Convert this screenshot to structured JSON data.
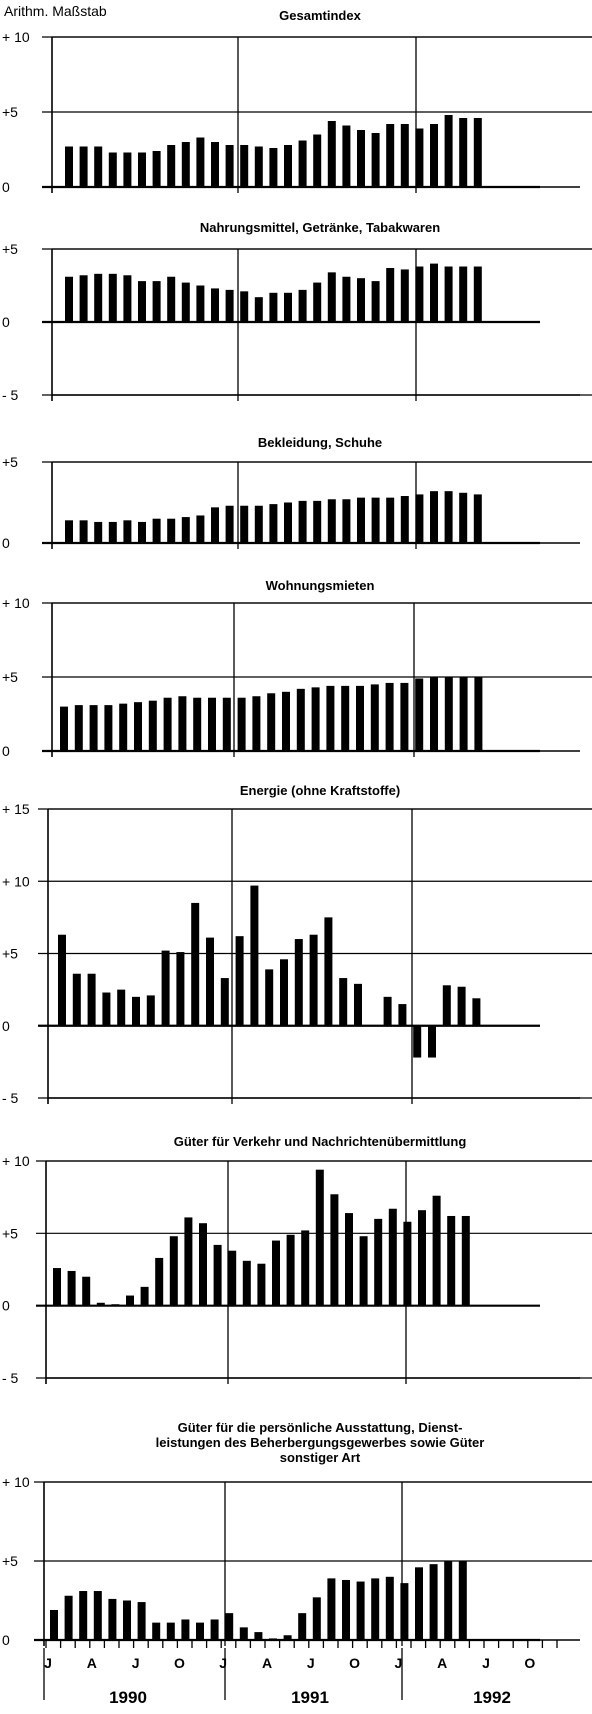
{
  "scale_label": "Arithm. Maßstab",
  "month_labels": [
    "J",
    "A",
    "J",
    "O",
    "J",
    "A",
    "J",
    "O",
    "J",
    "A",
    "J",
    "O"
  ],
  "year_labels": [
    "1990",
    "1991",
    "1992"
  ],
  "chart_data": [
    {
      "type": "bar",
      "title": "Gesamtindex",
      "ylim": [
        0,
        10
      ],
      "yticks": [
        "+ 10",
        "+5",
        "0"
      ],
      "values": [
        2.7,
        2.7,
        2.7,
        2.3,
        2.3,
        2.3,
        2.4,
        2.8,
        3.0,
        3.3,
        3.0,
        2.8,
        2.8,
        2.7,
        2.6,
        2.8,
        3.1,
        3.5,
        4.4,
        4.1,
        3.8,
        3.6,
        4.2,
        4.2,
        3.9,
        4.2,
        4.8,
        4.6,
        4.6
      ],
      "grid": true
    },
    {
      "type": "bar",
      "title": "Nahrungsmittel, Getränke, Tabakwaren",
      "ylim": [
        -5,
        5
      ],
      "yticks": [
        "+5",
        "0",
        "- 5"
      ],
      "values": [
        3.1,
        3.2,
        3.3,
        3.3,
        3.2,
        2.8,
        2.8,
        3.1,
        2.7,
        2.5,
        2.3,
        2.2,
        2.1,
        1.7,
        2.0,
        2.0,
        2.2,
        2.7,
        3.4,
        3.1,
        3.0,
        2.8,
        3.7,
        3.6,
        3.8,
        4.0,
        3.8,
        3.8,
        3.8
      ],
      "grid": true
    },
    {
      "type": "bar",
      "title": "Bekleidung, Schuhe",
      "ylim": [
        0,
        5
      ],
      "yticks": [
        "+5",
        "0"
      ],
      "values": [
        1.4,
        1.4,
        1.3,
        1.3,
        1.4,
        1.3,
        1.5,
        1.5,
        1.6,
        1.7,
        2.2,
        2.3,
        2.3,
        2.3,
        2.4,
        2.5,
        2.6,
        2.6,
        2.7,
        2.7,
        2.8,
        2.8,
        2.8,
        2.9,
        3.0,
        3.2,
        3.2,
        3.1,
        3.0
      ],
      "grid": true
    },
    {
      "type": "bar",
      "title": "Wohnungsmieten",
      "ylim": [
        0,
        10
      ],
      "yticks": [
        "+ 10",
        "+5",
        "0"
      ],
      "values": [
        3.0,
        3.1,
        3.1,
        3.1,
        3.2,
        3.3,
        3.4,
        3.6,
        3.7,
        3.6,
        3.6,
        3.6,
        3.6,
        3.7,
        3.9,
        4.0,
        4.2,
        4.3,
        4.4,
        4.4,
        4.4,
        4.5,
        4.6,
        4.6,
        4.9,
        5.0,
        5.0,
        5.0,
        5.0
      ],
      "grid": true
    },
    {
      "type": "bar",
      "title": "Energie (ohne Kraftstoffe)",
      "ylim": [
        -5,
        15
      ],
      "yticks": [
        "+ 15",
        "+ 10",
        "+5",
        "0",
        "- 5"
      ],
      "values": [
        6.3,
        3.6,
        3.6,
        2.3,
        2.5,
        2.0,
        2.1,
        5.2,
        5.1,
        8.5,
        6.1,
        3.3,
        6.2,
        9.7,
        3.9,
        4.6,
        6.0,
        6.3,
        7.5,
        3.3,
        2.9,
        0.0,
        2.0,
        1.5,
        -2.2,
        -2.2,
        2.8,
        2.7,
        1.9
      ],
      "grid": true
    },
    {
      "type": "bar",
      "title": "Güter für Verkehr und Nachrichtenübermittlung",
      "ylim": [
        -5,
        10
      ],
      "yticks": [
        "+ 10",
        "+5",
        "0",
        "- 5"
      ],
      "values": [
        2.6,
        2.4,
        2.0,
        0.2,
        0.1,
        0.7,
        1.3,
        3.3,
        4.8,
        6.1,
        5.7,
        4.2,
        3.8,
        3.1,
        2.9,
        4.5,
        4.9,
        5.2,
        9.4,
        7.7,
        6.4,
        4.8,
        6.0,
        6.7,
        5.8,
        6.6,
        7.6,
        6.2,
        6.2
      ],
      "grid": true
    },
    {
      "type": "bar",
      "title": "Güter für die persönliche Ausstattung, Dienst-\nleistungen des Beherbergungsgewerbes sowie Güter\nsonstiger Art",
      "ylim": [
        0,
        10
      ],
      "yticks": [
        "+ 10",
        "+5",
        "0"
      ],
      "values": [
        1.9,
        2.8,
        3.1,
        3.1,
        2.6,
        2.5,
        2.4,
        1.1,
        1.1,
        1.3,
        1.1,
        1.3,
        1.7,
        0.8,
        0.5,
        0.1,
        0.3,
        1.7,
        2.7,
        3.9,
        3.8,
        3.7,
        3.9,
        4.0,
        3.6,
        4.6,
        4.8,
        5.0,
        5.0
      ],
      "grid": true
    }
  ]
}
